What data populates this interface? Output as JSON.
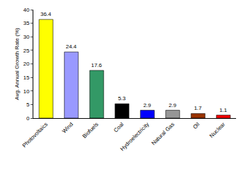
{
  "chart_data": {
    "type": "bar",
    "y_label": "Avg. Annual Growth Rate (%)",
    "categories": [
      "Photovoltaics",
      "Wind",
      "Biofuels",
      "Coal",
      "Hydroelectricity",
      "Natural Gas",
      "Oil",
      "Nuclear"
    ],
    "values": [
      36.4,
      24.4,
      17.6,
      5.3,
      2.9,
      2.9,
      1.7,
      1.1
    ],
    "colors": [
      "#ffff00",
      "#9999ff",
      "#339966",
      "#000000",
      "#0000ff",
      "#969696",
      "#993300",
      "#ff0000"
    ],
    "ylim": [
      0,
      40
    ],
    "yticks": [
      0,
      5,
      10,
      15,
      20,
      25,
      30,
      35,
      40
    ],
    "grid": false,
    "data_labels": true
  }
}
